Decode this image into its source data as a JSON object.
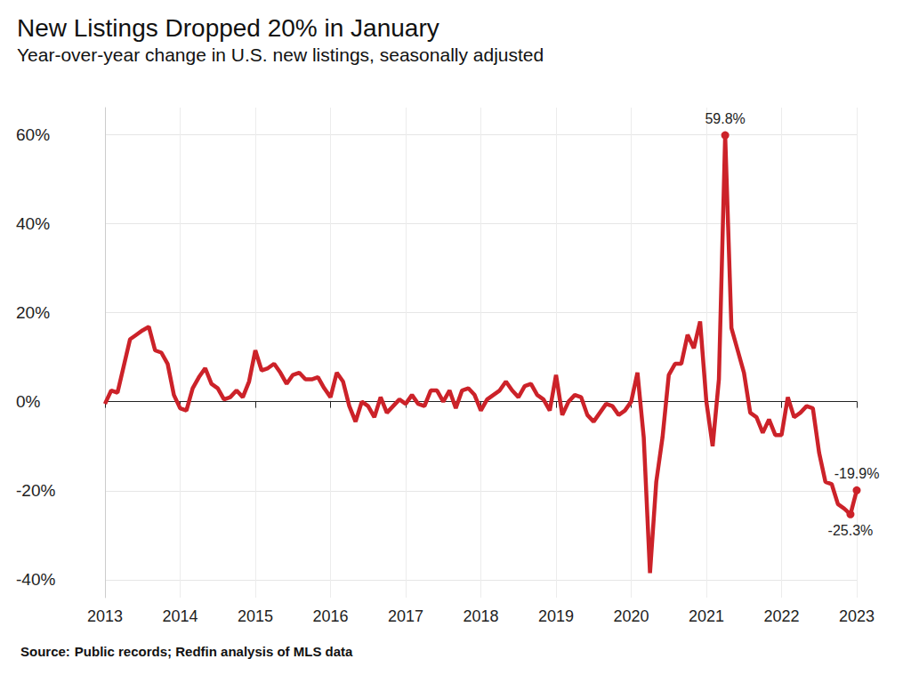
{
  "chart_data": {
    "type": "line",
    "title": "New Listings Dropped 20% in January",
    "subtitle": "Year-over-year change in U.S. new listings, seasonally adjusted",
    "source_label": "Source:",
    "source": "Public records; Redfin analysis of MLS data",
    "color": "#cc2229",
    "grid": true,
    "categories": [
      "2013",
      null,
      null,
      null,
      null,
      null,
      null,
      null,
      null,
      null,
      null,
      null,
      "2014",
      null,
      null,
      null,
      null,
      null,
      null,
      null,
      null,
      null,
      null,
      null,
      "2015",
      null,
      null,
      null,
      null,
      null,
      null,
      null,
      null,
      null,
      null,
      null,
      "2016",
      null,
      null,
      null,
      null,
      null,
      null,
      null,
      null,
      null,
      null,
      null,
      "2017",
      null,
      null,
      null,
      null,
      null,
      null,
      null,
      null,
      null,
      null,
      null,
      "2018",
      null,
      null,
      null,
      null,
      null,
      null,
      null,
      null,
      null,
      null,
      null,
      "2019",
      null,
      null,
      null,
      null,
      null,
      null,
      null,
      null,
      null,
      null,
      null,
      "2020",
      null,
      null,
      null,
      null,
      null,
      null,
      null,
      null,
      null,
      null,
      null,
      "2021",
      null,
      null,
      null,
      null,
      null,
      null,
      null,
      null,
      null,
      null,
      null,
      "2022",
      null,
      null,
      null,
      null,
      null,
      null,
      null,
      null,
      null,
      null,
      null,
      "2023"
    ],
    "values": [
      -0.5,
      2.5,
      2,
      8,
      14,
      15,
      16,
      16.8,
      11.5,
      11,
      8.5,
      1.5,
      -1.5,
      -2,
      3,
      5.5,
      7.5,
      4,
      3,
      0.5,
      1,
      2.5,
      1,
      4.5,
      11.5,
      7,
      7.5,
      8.5,
      6.5,
      4,
      6,
      6.5,
      5,
      5,
      5.5,
      3,
      1,
      6.5,
      4.5,
      -1,
      -4.5,
      0,
      -1,
      -3.5,
      1,
      -2.5,
      -1,
      0.5,
      -0.5,
      1.5,
      -0.5,
      -1,
      2.5,
      2.5,
      0,
      2.5,
      -1.5,
      2.5,
      3,
      1.5,
      -2,
      0.5,
      1.5,
      2.5,
      4.5,
      2.5,
      1,
      3.5,
      4,
      1.5,
      0.5,
      -2,
      6,
      -3,
      0,
      1.5,
      1,
      -3,
      -4.5,
      -2.5,
      -0.5,
      -1,
      -3,
      -2,
      0,
      6.5,
      -8,
      -38.5,
      -18,
      -8,
      6,
      8.5,
      8.5,
      15,
      12,
      18,
      0,
      -10,
      5,
      59.8,
      16.5,
      11.5,
      6.5,
      -2.5,
      -3.5,
      -7,
      -4,
      -7.5,
      -7.5,
      1,
      -3.5,
      -2.5,
      -1,
      -1.5,
      -11.5,
      -18,
      -18.5,
      -23,
      -24,
      -25.3,
      -19.9
    ],
    "value_labels": [
      null,
      null,
      null,
      null,
      null,
      null,
      null,
      null,
      null,
      null,
      null,
      null,
      null,
      null,
      null,
      null,
      null,
      null,
      null,
      null,
      null,
      null,
      null,
      null,
      null,
      null,
      null,
      null,
      null,
      null,
      null,
      null,
      null,
      null,
      null,
      null,
      null,
      null,
      null,
      null,
      null,
      null,
      null,
      null,
      null,
      null,
      null,
      null,
      null,
      null,
      null,
      null,
      null,
      null,
      null,
      null,
      null,
      null,
      null,
      null,
      null,
      null,
      null,
      null,
      null,
      null,
      null,
      null,
      null,
      null,
      null,
      null,
      null,
      null,
      null,
      null,
      null,
      null,
      null,
      null,
      null,
      null,
      null,
      null,
      null,
      null,
      null,
      null,
      null,
      null,
      null,
      null,
      null,
      null,
      null,
      null,
      null,
      null,
      null,
      "59.8%",
      null,
      null,
      null,
      null,
      null,
      null,
      null,
      null,
      null,
      null,
      null,
      null,
      null,
      null,
      null,
      null,
      null,
      null,
      null,
      "-25.3%",
      "-19.9%"
    ],
    "ylim": [
      -44,
      66
    ],
    "yticks": [
      {
        "value": -40,
        "label": "-40%"
      },
      {
        "value": -20,
        "label": "-20%"
      },
      {
        "value": 0,
        "label": "0%"
      },
      {
        "value": 20,
        "label": "20%"
      },
      {
        "value": 40,
        "label": "40%"
      },
      {
        "value": 60,
        "label": "60%"
      }
    ]
  }
}
